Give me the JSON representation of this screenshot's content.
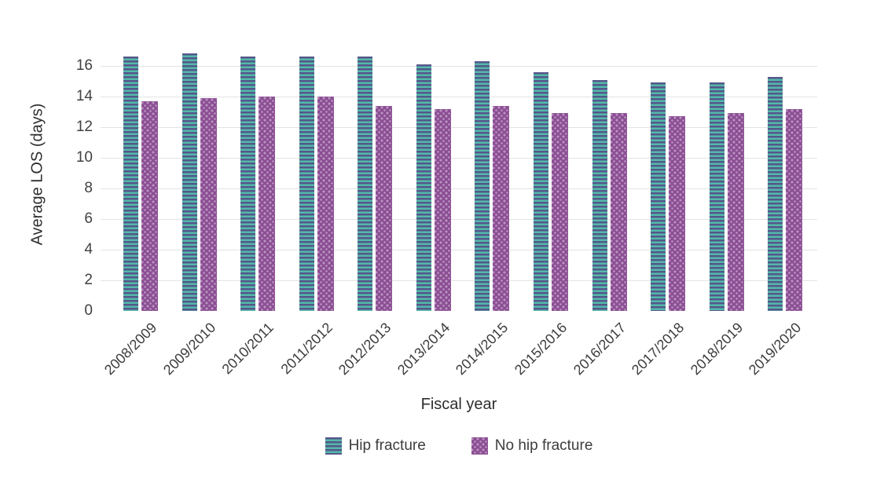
{
  "chart_data": {
    "type": "bar",
    "title": "",
    "xlabel": "Fiscal year",
    "ylabel": "Average LOS (days)",
    "categories": [
      "2008/2009",
      "2009/2010",
      "2010/2011",
      "2011/2012",
      "2012/2013",
      "2013/2014",
      "2014/2015",
      "2015/2016",
      "2016/2017",
      "2017/2018",
      "2018/2019",
      "2019/2020"
    ],
    "series": [
      {
        "name": "Hip fracture",
        "values": [
          16.6,
          16.8,
          16.6,
          16.6,
          16.6,
          16.1,
          16.3,
          15.6,
          15.1,
          14.9,
          14.9,
          15.3
        ],
        "fill_color": "#52B9A9",
        "pattern": "horizontal-stripes",
        "pattern_color": "#56568B"
      },
      {
        "name": "No hip fracture",
        "values": [
          13.7,
          13.9,
          14.0,
          14.0,
          13.4,
          13.2,
          13.4,
          12.9,
          12.9,
          12.7,
          12.9,
          13.2
        ],
        "fill_color": "#8B4E93",
        "pattern": "dots",
        "pattern_color": "#BA93C1"
      }
    ],
    "ylim": [
      0,
      16
    ],
    "yticks": [
      0,
      2,
      4,
      6,
      8,
      10,
      12,
      14,
      16
    ],
    "grid": "horizontal",
    "gridline_color": "#E3E3E3",
    "axisline_color": "#C9C9C9",
    "text_color": "#3D3D3D",
    "legend_position": "bottom",
    "x_tick_rotation_deg": 45
  }
}
